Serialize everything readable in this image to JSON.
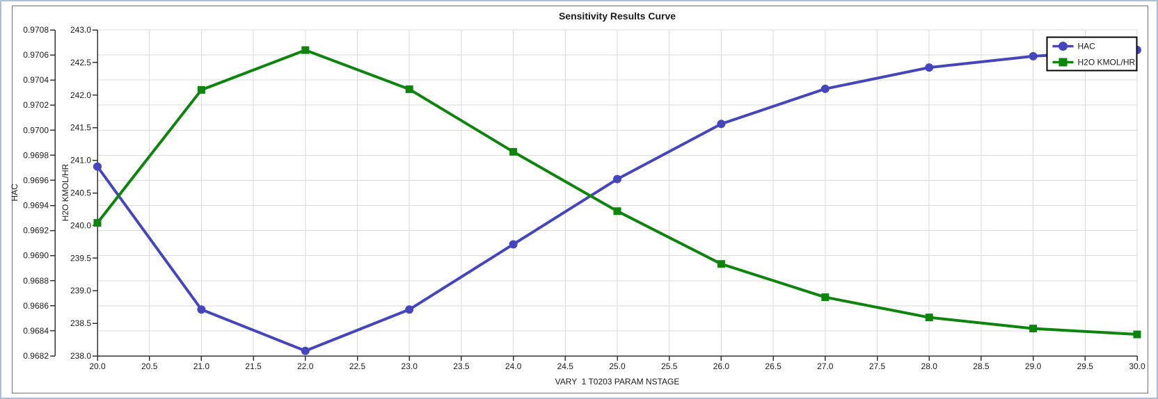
{
  "window": {
    "kind": "sensitivity-plot-panel"
  },
  "colors": {
    "grid": "#D9D9D9",
    "axis": "#333333",
    "outer_border": "#A9C0DB",
    "inner_border": "#707070",
    "hac_series": "#4545BE",
    "h2o_series": "#0D850D"
  },
  "chart_data": {
    "type": "line",
    "title": "Sensitivity Results Curve",
    "xlabel": "VARY  1 T0203 PARAM NSTAGE",
    "grid": true,
    "x": [
      20,
      21,
      22,
      23,
      24,
      25,
      26,
      27,
      28,
      29,
      30
    ],
    "x_axis": {
      "min": 20,
      "max": 30,
      "tick_step": 0.5,
      "decimals": 1
    },
    "axes": {
      "hac": {
        "label": "HAC",
        "min": 0.9682,
        "max": 0.9708,
        "tick_step": 0.0002,
        "decimals": 4
      },
      "h2o": {
        "label": "H2O KMOL/HR",
        "min": 238.0,
        "max": 243.0,
        "tick_step": 0.5,
        "decimals": 1
      }
    },
    "series": [
      {
        "name": "HAC",
        "axis": "hac",
        "color": "#4545BE",
        "marker": "circle",
        "values": [
          0.96971,
          0.96857,
          0.96824,
          0.96857,
          0.96909,
          0.96961,
          0.97005,
          0.97033,
          0.9705,
          0.97059,
          0.97064
        ]
      },
      {
        "name": "H2O KMOL/HR",
        "axis": "h2o",
        "color": "#0D850D",
        "marker": "square",
        "values": [
          240.04,
          242.08,
          242.69,
          242.09,
          241.13,
          240.22,
          239.41,
          238.9,
          238.59,
          238.42,
          238.33
        ]
      }
    ],
    "legend": {
      "position": "top-right",
      "entries": [
        "HAC",
        "H2O KMOL/HR"
      ]
    }
  }
}
